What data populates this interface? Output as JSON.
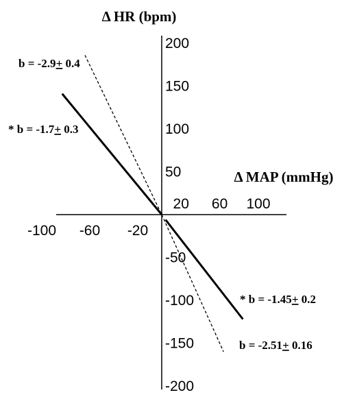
{
  "chart_data": {
    "type": "line",
    "xlabel": "Δ MAP (mmHg)",
    "ylabel": "Δ HR (bpm)",
    "xlim": [
      -100,
      100
    ],
    "ylim": [
      -200,
      200
    ],
    "x_ticks_negative": [
      "-100",
      "-60",
      "-20"
    ],
    "x_ticks_positive": [
      "20",
      "60",
      "100"
    ],
    "y_ticks": [
      "200",
      "150",
      "100",
      "50",
      "-50",
      "-100",
      "-150",
      "-200"
    ],
    "grid": false,
    "series": [
      {
        "style": "solid",
        "color": "#000000",
        "label_prefix": "* b = -1.7",
        "label_pm": "+",
        "label_suffix": " 0.3",
        "x": [
          -83,
          0
        ],
        "y": [
          141,
          0
        ]
      },
      {
        "style": "dashed",
        "color": "#000000",
        "label_prefix": "b = -2.9",
        "label_pm": "+",
        "label_suffix": " 0.4",
        "x": [
          -64,
          0
        ],
        "y": [
          186,
          0
        ]
      },
      {
        "style": "solid",
        "color": "#000000",
        "label_prefix": "* b = -1.45",
        "label_pm": "+",
        "label_suffix": " 0.2",
        "x": [
          4,
          84
        ],
        "y": [
          -6,
          -122
        ]
      },
      {
        "style": "dashed",
        "color": "#000000",
        "label_prefix": "b = -2.51",
        "label_pm": "+",
        "label_suffix": " 0.16",
        "x": [
          0,
          64
        ],
        "y": [
          0,
          -160
        ]
      }
    ]
  }
}
